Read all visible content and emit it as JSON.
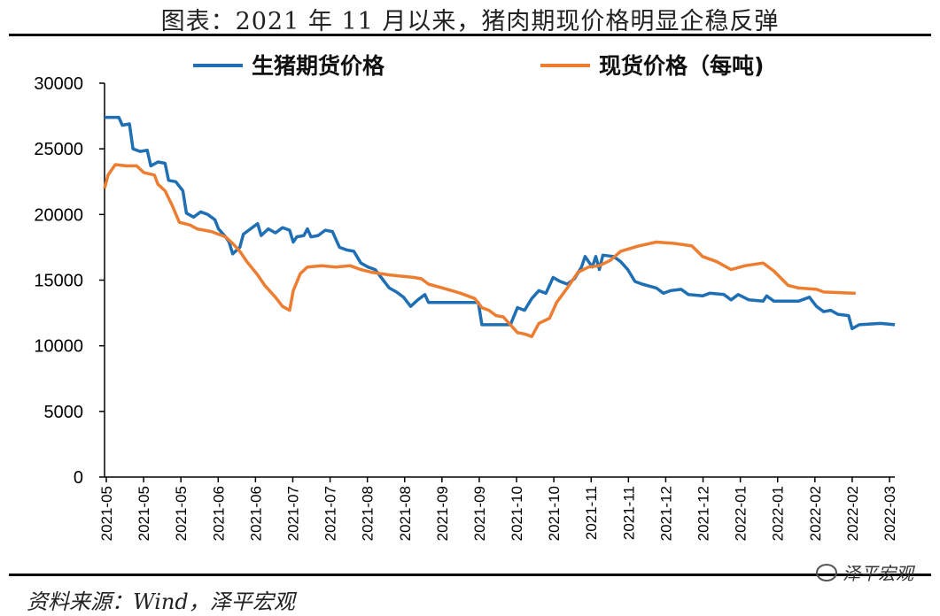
{
  "title": "图表：2021 年 11 月以来，猪肉期现价格明显企稳反弹",
  "source": "资料来源：Wind，泽平宏观",
  "watermark": "泽平宏观",
  "chart_data": {
    "type": "line",
    "ylim": [
      0,
      30000
    ],
    "yticks": [
      0,
      5000,
      10000,
      15000,
      20000,
      25000,
      30000
    ],
    "xticks": [
      "2021-05",
      "2021-05",
      "2021-05",
      "2021-06",
      "2021-06",
      "2021-07",
      "2021-07",
      "2021-08",
      "2021-08",
      "2021-09",
      "2021-09",
      "2021-10",
      "2021-10",
      "2021-11",
      "2021-11",
      "2021-12",
      "2021-12",
      "2022-01",
      "2022-01",
      "2022-02",
      "2022-02",
      "2022-03"
    ],
    "x_count": 223,
    "series": [
      {
        "name": "生猪期货价格",
        "color": "#1f6fb5",
        "points": [
          [
            0,
            27400
          ],
          [
            4,
            27400
          ],
          [
            5,
            26800
          ],
          [
            7,
            26900
          ],
          [
            8,
            25000
          ],
          [
            10,
            24800
          ],
          [
            12,
            24900
          ],
          [
            13,
            23700
          ],
          [
            15,
            24000
          ],
          [
            17,
            23900
          ],
          [
            18,
            22600
          ],
          [
            20,
            22500
          ],
          [
            22,
            21800
          ],
          [
            23,
            20100
          ],
          [
            25,
            19800
          ],
          [
            27,
            20200
          ],
          [
            29,
            20000
          ],
          [
            31,
            19600
          ],
          [
            32,
            18900
          ],
          [
            34,
            18300
          ],
          [
            35,
            17900
          ],
          [
            36,
            17000
          ],
          [
            38,
            17500
          ],
          [
            39,
            18500
          ],
          [
            41,
            18900
          ],
          [
            43,
            19300
          ],
          [
            44,
            18400
          ],
          [
            46,
            18900
          ],
          [
            48,
            18600
          ],
          [
            50,
            19000
          ],
          [
            52,
            18800
          ],
          [
            53,
            17900
          ],
          [
            54,
            18300
          ],
          [
            56,
            18400
          ],
          [
            57,
            18900
          ],
          [
            58,
            18300
          ],
          [
            60,
            18400
          ],
          [
            62,
            18800
          ],
          [
            64,
            18700
          ],
          [
            66,
            17500
          ],
          [
            68,
            17300
          ],
          [
            70,
            17200
          ],
          [
            72,
            16300
          ],
          [
            74,
            16000
          ],
          [
            76,
            15800
          ],
          [
            78,
            15100
          ],
          [
            80,
            14400
          ],
          [
            82,
            14100
          ],
          [
            84,
            13700
          ],
          [
            86,
            13000
          ],
          [
            88,
            13500
          ],
          [
            90,
            13900
          ],
          [
            91,
            13300
          ],
          [
            95,
            13300
          ],
          [
            100,
            13300
          ],
          [
            105,
            13300
          ],
          [
            106,
            11600
          ],
          [
            110,
            11600
          ],
          [
            114,
            11600
          ],
          [
            116,
            12900
          ],
          [
            118,
            12700
          ],
          [
            120,
            13600
          ],
          [
            122,
            14200
          ],
          [
            124,
            14000
          ],
          [
            126,
            15200
          ],
          [
            128,
            14900
          ],
          [
            130,
            14700
          ],
          [
            132,
            15100
          ],
          [
            134,
            16000
          ],
          [
            135,
            16800
          ],
          [
            137,
            16000
          ],
          [
            138,
            16800
          ],
          [
            139,
            15800
          ],
          [
            140,
            16900
          ],
          [
            143,
            16800
          ],
          [
            145,
            16400
          ],
          [
            147,
            15800
          ],
          [
            149,
            14900
          ],
          [
            151,
            14700
          ],
          [
            155,
            14400
          ],
          [
            157,
            14000
          ],
          [
            159,
            14200
          ],
          [
            162,
            14300
          ],
          [
            164,
            13900
          ],
          [
            168,
            13800
          ],
          [
            170,
            14000
          ],
          [
            174,
            13900
          ],
          [
            176,
            13500
          ],
          [
            178,
            13900
          ],
          [
            181,
            13500
          ],
          [
            185,
            13400
          ],
          [
            186,
            13800
          ],
          [
            188,
            13400
          ],
          [
            192,
            13400
          ],
          [
            195,
            13400
          ],
          [
            198,
            13700
          ],
          [
            200,
            13000
          ],
          [
            202,
            12600
          ],
          [
            204,
            12700
          ],
          [
            206,
            12400
          ],
          [
            209,
            12300
          ],
          [
            210,
            11300
          ],
          [
            212,
            11600
          ],
          [
            218,
            11700
          ],
          [
            222,
            11600
          ]
        ]
      },
      {
        "name": "现货价格（每吨)",
        "color": "#ed7d31",
        "points": [
          [
            0,
            22000
          ],
          [
            1,
            23000
          ],
          [
            3,
            23800
          ],
          [
            6,
            23700
          ],
          [
            9,
            23700
          ],
          [
            11,
            23200
          ],
          [
            14,
            23000
          ],
          [
            15,
            22300
          ],
          [
            17,
            21800
          ],
          [
            19,
            20700
          ],
          [
            21,
            19400
          ],
          [
            24,
            19200
          ],
          [
            26,
            18900
          ],
          [
            30,
            18700
          ],
          [
            34,
            18300
          ],
          [
            36,
            17800
          ],
          [
            38,
            17200
          ],
          [
            40,
            16400
          ],
          [
            43,
            15400
          ],
          [
            45,
            14600
          ],
          [
            47,
            14000
          ],
          [
            48,
            13700
          ],
          [
            50,
            13000
          ],
          [
            52,
            12700
          ],
          [
            53,
            14200
          ],
          [
            55,
            15500
          ],
          [
            57,
            16000
          ],
          [
            61,
            16100
          ],
          [
            65,
            16000
          ],
          [
            69,
            16100
          ],
          [
            72,
            15800
          ],
          [
            75,
            15600
          ],
          [
            80,
            15400
          ],
          [
            87,
            15200
          ],
          [
            89,
            15100
          ],
          [
            91,
            14700
          ],
          [
            95,
            14400
          ],
          [
            100,
            14000
          ],
          [
            104,
            13600
          ],
          [
            106,
            12900
          ],
          [
            108,
            12700
          ],
          [
            110,
            12300
          ],
          [
            112,
            12200
          ],
          [
            114,
            11600
          ],
          [
            116,
            11000
          ],
          [
            118,
            10900
          ],
          [
            120,
            10700
          ],
          [
            122,
            11700
          ],
          [
            125,
            12100
          ],
          [
            127,
            13300
          ],
          [
            130,
            14400
          ],
          [
            133,
            15600
          ],
          [
            136,
            16000
          ],
          [
            139,
            16100
          ],
          [
            142,
            16500
          ],
          [
            145,
            17200
          ],
          [
            150,
            17600
          ],
          [
            155,
            17900
          ],
          [
            160,
            17800
          ],
          [
            165,
            17600
          ],
          [
            168,
            16800
          ],
          [
            172,
            16400
          ],
          [
            176,
            15800
          ],
          [
            180,
            16100
          ],
          [
            185,
            16300
          ],
          [
            188,
            15700
          ],
          [
            192,
            14600
          ],
          [
            195,
            14400
          ],
          [
            200,
            14300
          ],
          [
            202,
            14100
          ],
          [
            210,
            14000
          ],
          [
            211,
            14000
          ]
        ]
      }
    ]
  }
}
